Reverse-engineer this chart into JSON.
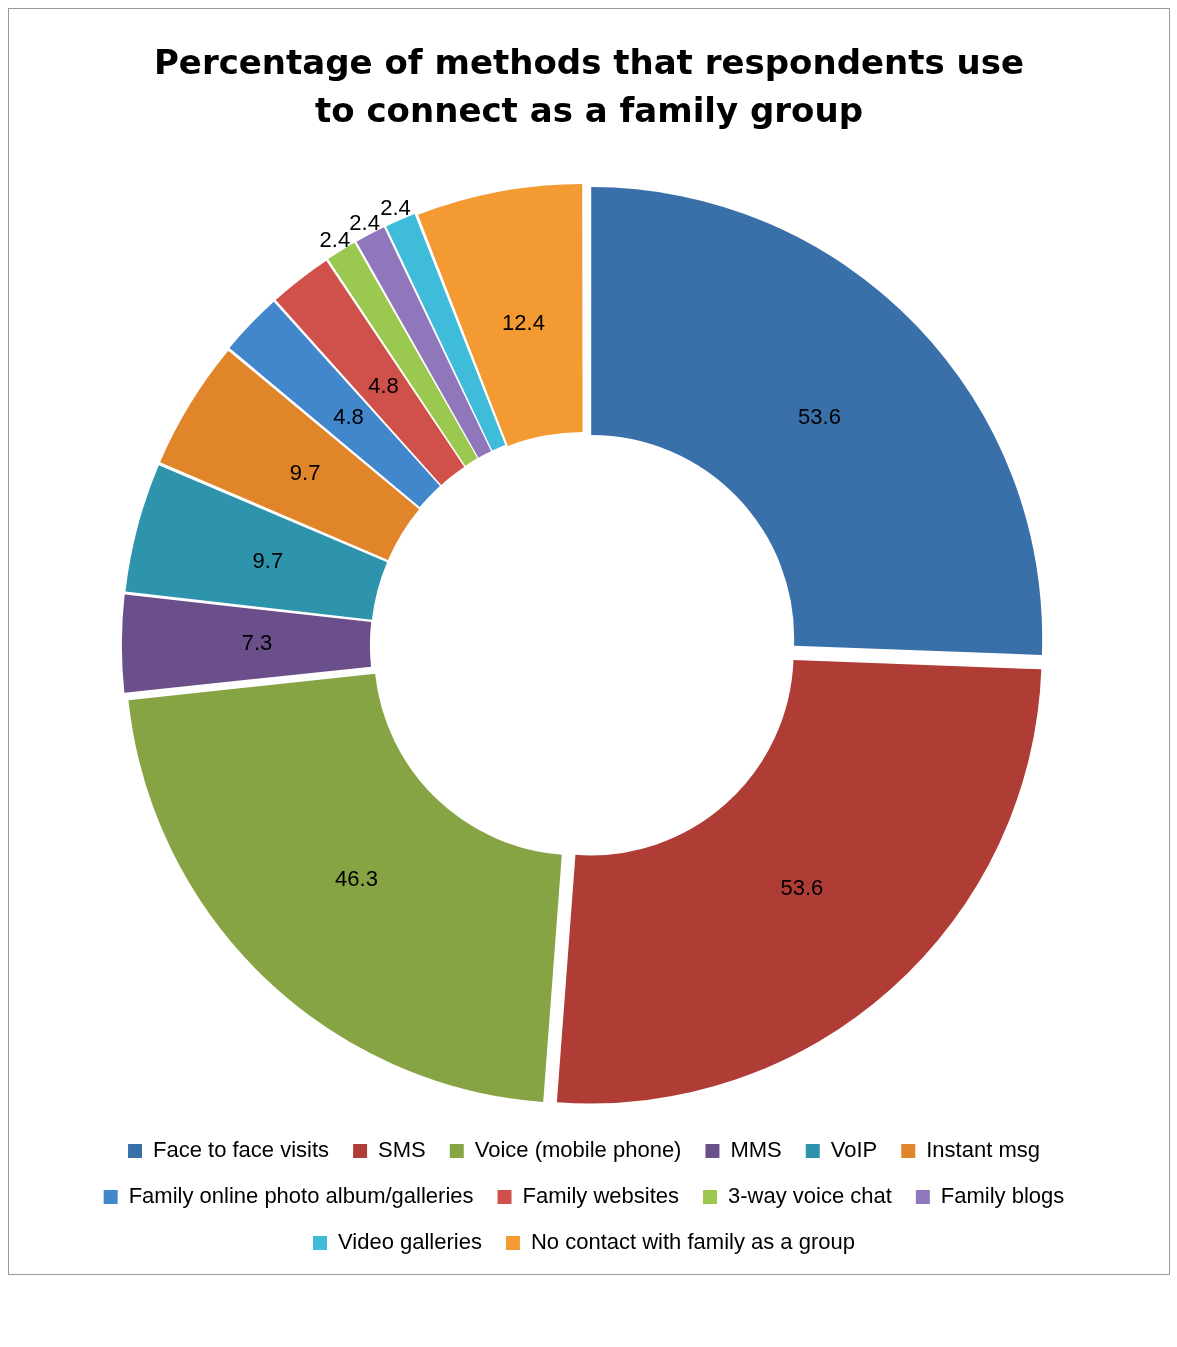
{
  "chart_data": {
    "type": "donut",
    "title": "Percentage of methods that respondents use to connect as a family group",
    "categories": [
      "Face to face visits",
      "SMS",
      "Voice (mobile phone)",
      "MMS",
      "VoIP",
      "Instant msg",
      "Family online photo album/galleries",
      "Family websites",
      "3-way voice chat",
      "Family blogs",
      "Video galleries",
      "No contact with family as a group"
    ],
    "values": [
      53.6,
      53.6,
      46.3,
      7.3,
      9.7,
      9.7,
      4.8,
      4.8,
      2.4,
      2.4,
      2.4,
      12.4
    ],
    "colors": [
      "#3a70aa",
      "#b03c36",
      "#86a444",
      "#6a4f8a",
      "#2e94ab",
      "#e0852a",
      "#4286cc",
      "#d0514c",
      "#9bc94f",
      "#9077bb",
      "#3fbcd9",
      "#f39a33"
    ],
    "data_labels": true,
    "legend": "bottom"
  }
}
